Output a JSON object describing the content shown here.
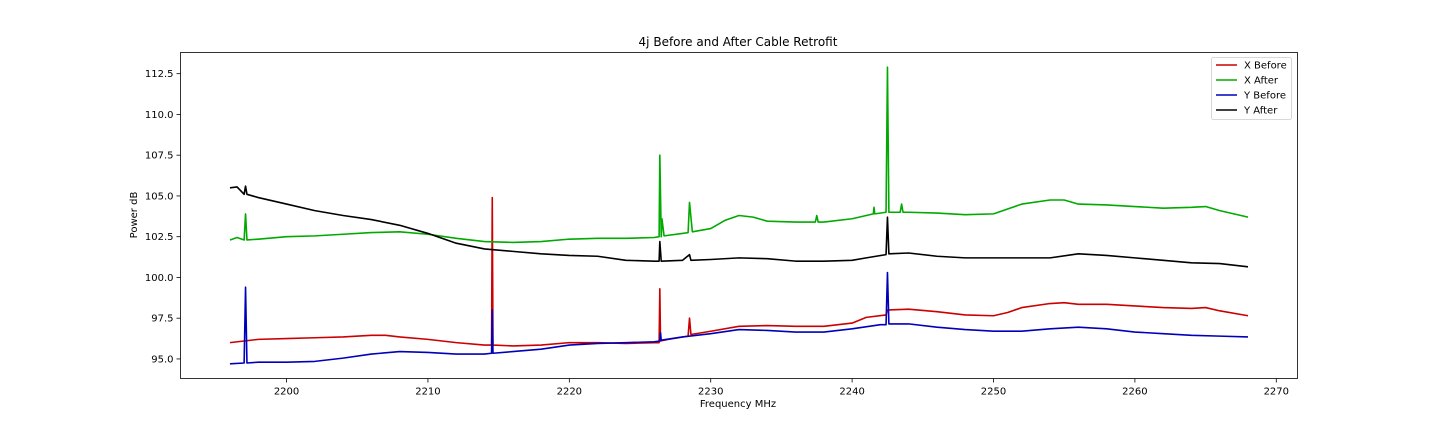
{
  "chart_data": {
    "type": "line",
    "title": "4j Before and After Cable Retrofit",
    "xlabel": "Frequency MHz",
    "ylabel": "Power dB",
    "xlim": [
      2192.5,
      2271.5
    ],
    "ylim": [
      93.8,
      113.8
    ],
    "xticks": [
      "2200",
      "2210",
      "2220",
      "2230",
      "2240",
      "2250",
      "2260",
      "2270"
    ],
    "yticks": [
      "95.0",
      "97.5",
      "100.0",
      "102.5",
      "105.0",
      "107.5",
      "110.0",
      "112.5"
    ],
    "grid": false,
    "legend_position": "top-right",
    "series": [
      {
        "name": "X Before",
        "color": "#cc0000",
        "points": [
          [
            2196,
            96.0
          ],
          [
            2198,
            96.2
          ],
          [
            2200,
            96.25
          ],
          [
            2202,
            96.3
          ],
          [
            2204,
            96.35
          ],
          [
            2206,
            96.45
          ],
          [
            2207,
            96.45
          ],
          [
            2208,
            96.35
          ],
          [
            2210,
            96.2
          ],
          [
            2212,
            96.0
          ],
          [
            2214,
            95.85
          ],
          [
            2214.5,
            95.85
          ],
          [
            2214.55,
            104.9
          ],
          [
            2214.6,
            95.85
          ],
          [
            2216,
            95.8
          ],
          [
            2218,
            95.85
          ],
          [
            2220,
            96.0
          ],
          [
            2222,
            96.0
          ],
          [
            2224,
            95.95
          ],
          [
            2226,
            96.0
          ],
          [
            2226.35,
            96.0
          ],
          [
            2226.4,
            99.3
          ],
          [
            2226.45,
            96.1
          ],
          [
            2227,
            96.2
          ],
          [
            2228.4,
            96.4
          ],
          [
            2228.5,
            97.5
          ],
          [
            2228.6,
            96.5
          ],
          [
            2230,
            96.7
          ],
          [
            2232,
            97.0
          ],
          [
            2234,
            97.05
          ],
          [
            2236,
            97.0
          ],
          [
            2238,
            97.0
          ],
          [
            2240,
            97.2
          ],
          [
            2241,
            97.55
          ],
          [
            2242.4,
            97.7
          ],
          [
            2242.5,
            98.0
          ],
          [
            2244,
            98.05
          ],
          [
            2246,
            97.9
          ],
          [
            2248,
            97.7
          ],
          [
            2250,
            97.65
          ],
          [
            2251,
            97.85
          ],
          [
            2252,
            98.15
          ],
          [
            2254,
            98.4
          ],
          [
            2255,
            98.45
          ],
          [
            2256,
            98.35
          ],
          [
            2258,
            98.35
          ],
          [
            2260,
            98.25
          ],
          [
            2262,
            98.15
          ],
          [
            2264,
            98.1
          ],
          [
            2265,
            98.15
          ],
          [
            2266,
            97.95
          ],
          [
            2268,
            97.65
          ]
        ]
      },
      {
        "name": "X After",
        "color": "#00aa00",
        "points": [
          [
            2196,
            102.3
          ],
          [
            2196.5,
            102.45
          ],
          [
            2197,
            102.3
          ],
          [
            2197.1,
            103.9
          ],
          [
            2197.2,
            102.3
          ],
          [
            2198,
            102.35
          ],
          [
            2200,
            102.5
          ],
          [
            2202,
            102.55
          ],
          [
            2204,
            102.65
          ],
          [
            2206,
            102.75
          ],
          [
            2208,
            102.8
          ],
          [
            2210,
            102.65
          ],
          [
            2212,
            102.4
          ],
          [
            2214,
            102.2
          ],
          [
            2216,
            102.15
          ],
          [
            2218,
            102.2
          ],
          [
            2220,
            102.35
          ],
          [
            2222,
            102.4
          ],
          [
            2224,
            102.4
          ],
          [
            2226,
            102.45
          ],
          [
            2226.35,
            102.5
          ],
          [
            2226.4,
            107.5
          ],
          [
            2226.5,
            102.5
          ],
          [
            2226.55,
            103.6
          ],
          [
            2226.7,
            102.55
          ],
          [
            2228,
            102.7
          ],
          [
            2228.4,
            102.75
          ],
          [
            2228.5,
            104.6
          ],
          [
            2228.7,
            102.8
          ],
          [
            2230,
            103.0
          ],
          [
            2231,
            103.5
          ],
          [
            2232,
            103.8
          ],
          [
            2233,
            103.7
          ],
          [
            2234,
            103.45
          ],
          [
            2236,
            103.4
          ],
          [
            2237.4,
            103.4
          ],
          [
            2237.5,
            103.8
          ],
          [
            2237.6,
            103.4
          ],
          [
            2238,
            103.4
          ],
          [
            2240,
            103.6
          ],
          [
            2241.5,
            103.9
          ],
          [
            2241.55,
            104.3
          ],
          [
            2241.6,
            103.9
          ],
          [
            2242.4,
            104.0
          ],
          [
            2242.5,
            112.9
          ],
          [
            2242.6,
            104.0
          ],
          [
            2243.4,
            104.0
          ],
          [
            2243.5,
            104.5
          ],
          [
            2243.6,
            104.0
          ],
          [
            2244,
            104.0
          ],
          [
            2246,
            103.95
          ],
          [
            2248,
            103.85
          ],
          [
            2250,
            103.9
          ],
          [
            2251,
            104.2
          ],
          [
            2252,
            104.5
          ],
          [
            2254,
            104.75
          ],
          [
            2255,
            104.75
          ],
          [
            2256,
            104.5
          ],
          [
            2258,
            104.45
          ],
          [
            2260,
            104.35
          ],
          [
            2262,
            104.25
          ],
          [
            2264,
            104.3
          ],
          [
            2265,
            104.35
          ],
          [
            2266,
            104.1
          ],
          [
            2268,
            103.7
          ]
        ]
      },
      {
        "name": "Y Before",
        "color": "#0000bb",
        "points": [
          [
            2196,
            94.7
          ],
          [
            2197,
            94.75
          ],
          [
            2197.1,
            99.4
          ],
          [
            2197.2,
            94.75
          ],
          [
            2198,
            94.8
          ],
          [
            2200,
            94.8
          ],
          [
            2202,
            94.85
          ],
          [
            2204,
            95.05
          ],
          [
            2206,
            95.3
          ],
          [
            2208,
            95.45
          ],
          [
            2210,
            95.4
          ],
          [
            2212,
            95.3
          ],
          [
            2214,
            95.3
          ],
          [
            2214.5,
            95.35
          ],
          [
            2214.55,
            98.0
          ],
          [
            2214.6,
            95.35
          ],
          [
            2216,
            95.45
          ],
          [
            2218,
            95.6
          ],
          [
            2220,
            95.85
          ],
          [
            2222,
            95.95
          ],
          [
            2224,
            96.0
          ],
          [
            2226,
            96.05
          ],
          [
            2226.4,
            96.1
          ],
          [
            2226.45,
            96.6
          ],
          [
            2226.5,
            96.15
          ],
          [
            2228,
            96.35
          ],
          [
            2230,
            96.55
          ],
          [
            2232,
            96.8
          ],
          [
            2234,
            96.75
          ],
          [
            2236,
            96.65
          ],
          [
            2238,
            96.65
          ],
          [
            2240,
            96.85
          ],
          [
            2242,
            97.1
          ],
          [
            2242.4,
            97.1
          ],
          [
            2242.5,
            100.3
          ],
          [
            2242.6,
            97.15
          ],
          [
            2244,
            97.15
          ],
          [
            2246,
            96.95
          ],
          [
            2248,
            96.8
          ],
          [
            2250,
            96.7
          ],
          [
            2252,
            96.7
          ],
          [
            2254,
            96.85
          ],
          [
            2256,
            96.95
          ],
          [
            2258,
            96.85
          ],
          [
            2260,
            96.65
          ],
          [
            2262,
            96.55
          ],
          [
            2264,
            96.45
          ],
          [
            2266,
            96.4
          ],
          [
            2268,
            96.35
          ]
        ]
      },
      {
        "name": "Y After",
        "color": "#000000",
        "points": [
          [
            2196,
            105.5
          ],
          [
            2196.5,
            105.55
          ],
          [
            2197,
            105.1
          ],
          [
            2197.1,
            105.6
          ],
          [
            2197.2,
            105.1
          ],
          [
            2198,
            104.9
          ],
          [
            2200,
            104.5
          ],
          [
            2202,
            104.1
          ],
          [
            2204,
            103.8
          ],
          [
            2206,
            103.55
          ],
          [
            2208,
            103.2
          ],
          [
            2210,
            102.7
          ],
          [
            2212,
            102.1
          ],
          [
            2214,
            101.75
          ],
          [
            2216,
            101.6
          ],
          [
            2218,
            101.45
          ],
          [
            2220,
            101.35
          ],
          [
            2222,
            101.3
          ],
          [
            2224,
            101.05
          ],
          [
            2226,
            101.0
          ],
          [
            2226.35,
            101.0
          ],
          [
            2226.4,
            102.2
          ],
          [
            2226.5,
            101.0
          ],
          [
            2228,
            101.05
          ],
          [
            2228.5,
            101.4
          ],
          [
            2228.6,
            101.05
          ],
          [
            2230,
            101.1
          ],
          [
            2232,
            101.2
          ],
          [
            2234,
            101.15
          ],
          [
            2236,
            101.0
          ],
          [
            2238,
            101.0
          ],
          [
            2240,
            101.05
          ],
          [
            2241,
            101.2
          ],
          [
            2242.4,
            101.4
          ],
          [
            2242.5,
            103.7
          ],
          [
            2242.6,
            101.45
          ],
          [
            2244,
            101.5
          ],
          [
            2246,
            101.3
          ],
          [
            2248,
            101.2
          ],
          [
            2250,
            101.2
          ],
          [
            2252,
            101.2
          ],
          [
            2254,
            101.2
          ],
          [
            2256,
            101.45
          ],
          [
            2258,
            101.35
          ],
          [
            2260,
            101.2
          ],
          [
            2262,
            101.05
          ],
          [
            2264,
            100.9
          ],
          [
            2266,
            100.85
          ],
          [
            2268,
            100.65
          ]
        ]
      }
    ]
  }
}
